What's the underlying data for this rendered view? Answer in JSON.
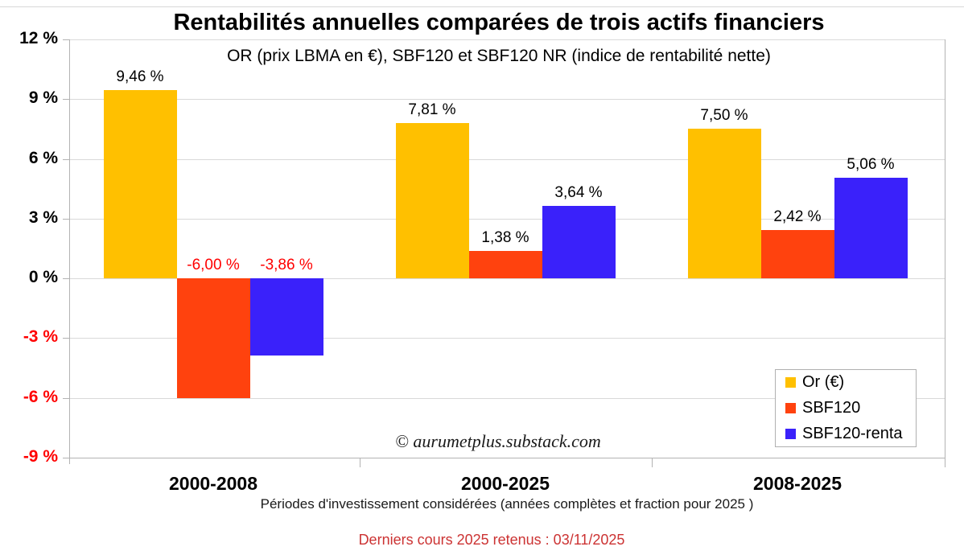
{
  "title": "Rentabilités annuelles comparées de trois actifs financiers",
  "subtitle": "OR (prix LBMA en €), SBF120 et SBF120 NR (indice de rentabilité nette)",
  "watermark": "© aurumetplus.substack.com",
  "x_axis_caption": "Périodes d'investissement considérées (années complètes et fraction pour 2025 )",
  "footer_note": "Derniers cours 2025 retenus : 03/11/2025",
  "colors": {
    "gold": "#FFC000",
    "orange_red": "#FF420E",
    "blue": "#3A21FA",
    "negative_label": "#FF0000",
    "footer_red": "#CC3333",
    "gridline": "#d9d9d9",
    "axis": "#b3b3b3"
  },
  "chart_data": {
    "type": "bar",
    "title": "Rentabilités annuelles comparées de trois actifs financiers",
    "subtitle": "OR (prix LBMA en €), SBF120 et SBF120 NR (indice de rentabilité nette)",
    "xlabel": "Périodes d'investissement considérées (années complètes et fraction pour 2025 )",
    "ylabel": "",
    "categories": [
      "2000-2008",
      "2000-2025",
      "2008-2025"
    ],
    "series": [
      {
        "name": "Or (€)",
        "color": "#FFC000",
        "values": [
          9.46,
          7.81,
          7.5
        ],
        "labels": [
          "9,46 %",
          "7,81 %",
          "7,50 %"
        ]
      },
      {
        "name": "SBF120",
        "color": "#FF420E",
        "values": [
          -6.0,
          1.38,
          2.42
        ],
        "labels": [
          "-6,00 %",
          "1,38 %",
          "2,42 %"
        ]
      },
      {
        "name": "SBF120-renta",
        "color": "#3A21FA",
        "values": [
          -3.86,
          3.64,
          5.06
        ],
        "labels": [
          "-3,86 %",
          "3,64 %",
          "5,06 %"
        ]
      }
    ],
    "ylim": [
      -9,
      12
    ],
    "y_ticks": [
      {
        "value": 12,
        "label": "12 %"
      },
      {
        "value": 9,
        "label": "9 %"
      },
      {
        "value": 6,
        "label": "6 %"
      },
      {
        "value": 3,
        "label": "3 %"
      },
      {
        "value": 0,
        "label": "0 %"
      },
      {
        "value": -3,
        "label": "-3 %"
      },
      {
        "value": -6,
        "label": "-6 %"
      },
      {
        "value": -9,
        "label": "-9 %"
      }
    ],
    "grid": true,
    "legend_position": "bottom-right",
    "legend_entries": [
      "Or (€)",
      "SBF120",
      "SBF120-renta"
    ]
  }
}
